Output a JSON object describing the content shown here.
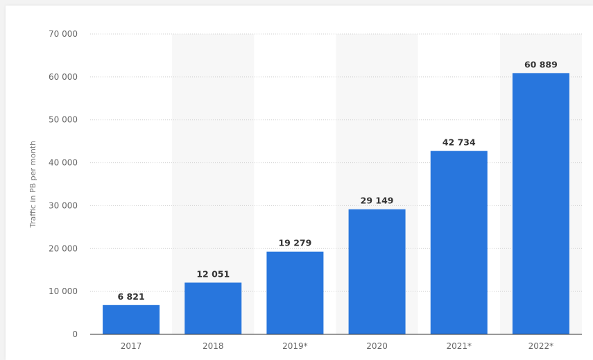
{
  "chart_data": {
    "type": "bar",
    "categories": [
      "2017",
      "2018",
      "2019*",
      "2020",
      "2021*",
      "2022*"
    ],
    "values": [
      6821,
      12051,
      19279,
      29149,
      42734,
      60889
    ],
    "value_labels": [
      "6 821",
      "12 051",
      "19 279",
      "29 149",
      "42 734",
      "60 889"
    ],
    "ylabel": "Traffic in PB per month",
    "xlabel": "",
    "title": "",
    "ylim": [
      0,
      70000
    ],
    "yticks": [
      0,
      10000,
      20000,
      30000,
      40000,
      50000,
      60000,
      70000
    ],
    "ytick_labels": [
      "0",
      "10 000",
      "20 000",
      "30 000",
      "40 000",
      "50 000",
      "60 000",
      "70 000"
    ],
    "grid": true,
    "bar_color": "#2876dd",
    "band_color": "#f7f7f7"
  }
}
